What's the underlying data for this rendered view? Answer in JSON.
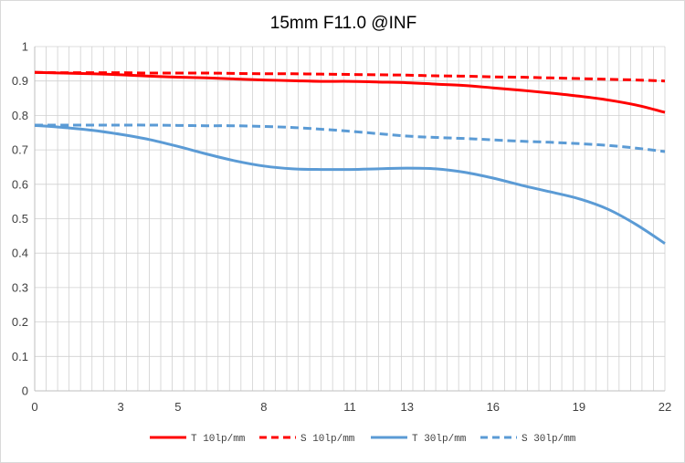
{
  "chart_data": {
    "type": "line",
    "title": "15mm F11.0 @INF",
    "xlabel": "",
    "ylabel": "",
    "xlim": [
      0,
      22
    ],
    "ylim": [
      0,
      1
    ],
    "x_ticks": [
      0,
      3,
      5,
      8,
      11,
      13,
      16,
      19,
      22
    ],
    "y_ticks": [
      0,
      0.1,
      0.2,
      0.3,
      0.4,
      0.5,
      0.6,
      0.7,
      0.8,
      0.9,
      1
    ],
    "y_tick_labels": [
      "0",
      "0.1",
      "0.2",
      "0.3",
      "0.4",
      "0.5",
      "0.6",
      "0.7",
      "0.8",
      "0.9",
      "1"
    ],
    "grid": "vertical lines every 0.4 mm, horizontal lines at every 0.1",
    "legend_position": "bottom",
    "x": [
      0,
      1,
      2,
      3,
      4,
      5,
      6,
      7,
      8,
      9,
      10,
      11,
      12,
      13,
      14,
      15,
      16,
      17,
      18,
      19,
      20,
      21,
      22
    ],
    "series": [
      {
        "name": "T 10lp/mm",
        "color": "#ff0000",
        "dash": "solid",
        "values": [
          0.925,
          0.923,
          0.921,
          0.918,
          0.914,
          0.911,
          0.909,
          0.906,
          0.903,
          0.901,
          0.899,
          0.899,
          0.897,
          0.895,
          0.891,
          0.887,
          0.88,
          0.873,
          0.865,
          0.856,
          0.845,
          0.83,
          0.809
        ]
      },
      {
        "name": "S 10lp/mm",
        "color": "#ff0000",
        "dash": "dashed",
        "values": [
          0.925,
          0.924,
          0.924,
          0.924,
          0.923,
          0.923,
          0.923,
          0.922,
          0.921,
          0.921,
          0.92,
          0.919,
          0.918,
          0.917,
          0.915,
          0.914,
          0.912,
          0.911,
          0.909,
          0.907,
          0.905,
          0.903,
          0.9
        ]
      },
      {
        "name": "T 30lp/mm",
        "color": "#5b9bd5",
        "dash": "solid",
        "values": [
          0.771,
          0.765,
          0.757,
          0.745,
          0.73,
          0.71,
          0.688,
          0.668,
          0.653,
          0.645,
          0.643,
          0.643,
          0.645,
          0.647,
          0.645,
          0.635,
          0.618,
          0.597,
          0.578,
          0.558,
          0.528,
          0.483,
          0.428
        ]
      },
      {
        "name": "S 30lp/mm",
        "color": "#5b9bd5",
        "dash": "dashed",
        "values": [
          0.772,
          0.772,
          0.772,
          0.772,
          0.772,
          0.771,
          0.77,
          0.77,
          0.768,
          0.765,
          0.76,
          0.754,
          0.747,
          0.74,
          0.736,
          0.733,
          0.729,
          0.725,
          0.722,
          0.718,
          0.713,
          0.705,
          0.695
        ]
      }
    ]
  }
}
